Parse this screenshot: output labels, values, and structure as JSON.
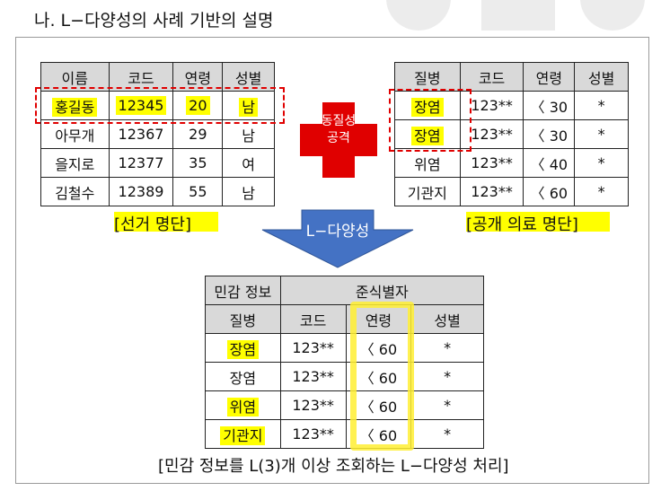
{
  "title": "나. L−다양성의 사례 기반의 설명",
  "election_table": {
    "headers": [
      "이름",
      "코드",
      "연령",
      "성별"
    ],
    "rows": [
      [
        "홍길동",
        "12345",
        "20",
        "남"
      ],
      [
        "아무개",
        "12367",
        "29",
        "남"
      ],
      [
        "을지로",
        "12377",
        "35",
        "여"
      ],
      [
        "김철수",
        "12389",
        "55",
        "남"
      ]
    ],
    "caption": "[선거 명단]"
  },
  "medical_table": {
    "headers": [
      "질병",
      "코드",
      "연령",
      "성별"
    ],
    "rows": [
      [
        "장염",
        "123**",
        "〈 30",
        "*"
      ],
      [
        "장염",
        "123**",
        "〈 30",
        "*"
      ],
      [
        "위염",
        "123**",
        "〈 40",
        "*"
      ],
      [
        "기관지",
        "123**",
        "〈 60",
        "*"
      ]
    ],
    "caption": "[공개 의료 명단]"
  },
  "homogeneity_label": [
    "동질성",
    "공격"
  ],
  "arrow_label": "L−다양성",
  "result_table": {
    "group_headers": [
      "민감 정보",
      "준식별자"
    ],
    "headers": [
      "질병",
      "코드",
      "연령",
      "성별"
    ],
    "rows": [
      [
        "장염",
        "123**",
        "〈 60",
        "*"
      ],
      [
        "장염",
        "123**",
        "〈 60",
        "*"
      ],
      [
        "위염",
        "123**",
        "〈 60",
        "*"
      ],
      [
        "기관지",
        "123**",
        "〈 60",
        "*"
      ]
    ]
  },
  "bottom_caption": "[민감 정보를 L(3)개 이상 조회하는 L−다양성 처리]",
  "colors": {
    "highlight": "#ffff00",
    "dashed_box": "#e00000",
    "cross": "#e00000",
    "arrow": "#4472c4",
    "header_bg": "#d9d9d9"
  }
}
